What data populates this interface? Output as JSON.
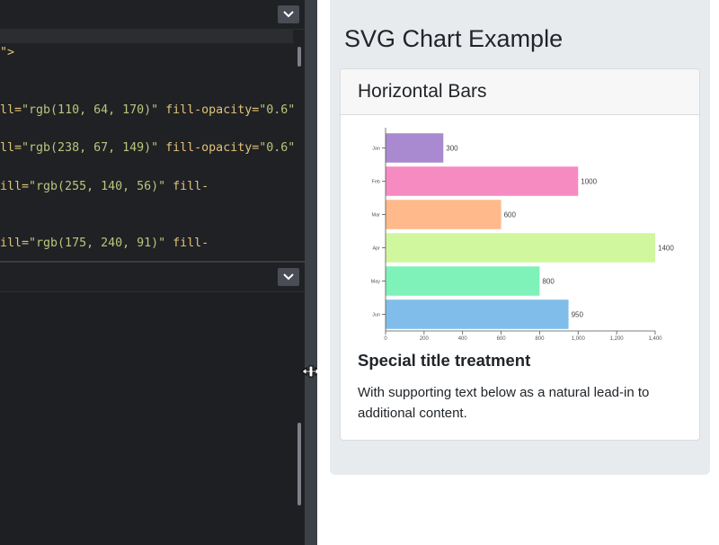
{
  "editor": {
    "code_lines": [
      "\">",
      "ll=\"rgb(110, 64, 170)\" fill-opacity=\"0.6\"",
      "ll=\"rgb(238, 67, 149)\" fill-opacity=\"0.6\"",
      "ill=\"rgb(255, 140, 56)\" fill-",
      "ill=\"rgb(175, 240, 91)\" fill-"
    ]
  },
  "preview": {
    "page_title": "SVG Chart Example",
    "card": {
      "header": "Horizontal Bars",
      "title": "Special title treatment",
      "text": "With supporting text below as a natural lead-in to additional content."
    }
  },
  "chart_data": {
    "type": "bar",
    "orientation": "horizontal",
    "categories": [
      "Jan",
      "Feb",
      "Mar",
      "Apr",
      "May",
      "Jun"
    ],
    "values": [
      300,
      1000,
      600,
      1400,
      800,
      950
    ],
    "value_labels": [
      "300",
      "1000",
      "600",
      "1400",
      "800",
      "950"
    ],
    "colors": [
      "#a98ad0",
      "#f68bc1",
      "#ffb98a",
      "#d1f79e",
      "#7ff2b9",
      "#80bdea"
    ],
    "xlim": [
      0,
      1400
    ],
    "xticks": [
      0,
      200,
      400,
      600,
      800,
      1000,
      1200,
      1400
    ],
    "xtick_labels": [
      "0",
      "200",
      "400",
      "600",
      "800",
      "1,000",
      "1,200",
      "1,400"
    ],
    "grid": false,
    "title": "",
    "xlabel": "",
    "ylabel": ""
  },
  "colors": {
    "editor_bg": "#1e1f22",
    "gutter": "#3c4047",
    "preview_bg": "#e8ebee",
    "string": "#b7c77d",
    "attr": "#e0c37a"
  }
}
